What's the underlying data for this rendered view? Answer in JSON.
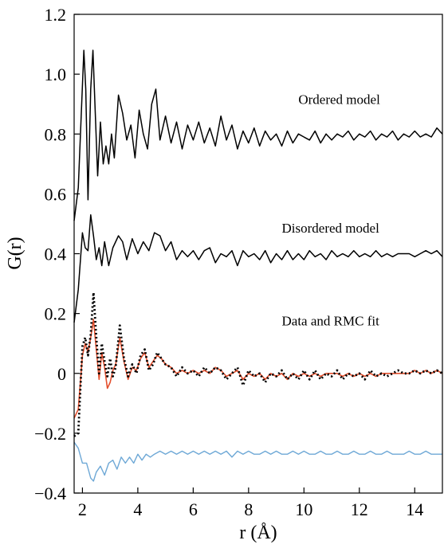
{
  "chart_data": {
    "type": "line",
    "xlabel": "r (Å)",
    "ylabel": "G(r)",
    "xlim": [
      1.7,
      15.0
    ],
    "ylim": [
      -0.4,
      1.2
    ],
    "xticks": [
      "2",
      "4",
      "6",
      "8",
      "10",
      "12",
      "14"
    ],
    "yticks": [
      "−0.4",
      "−0.2",
      "0",
      "0.2",
      "0.4",
      "0.6",
      "0.8",
      "1.0",
      "1.2"
    ],
    "grid": false,
    "legend": "none",
    "annotations": [
      {
        "text": "Ordered model",
        "x": 9.8,
        "y": 0.9
      },
      {
        "text": "Disordered model",
        "x": 9.2,
        "y": 0.47
      },
      {
        "text": "Data and RMC fit",
        "x": 9.2,
        "y": 0.16
      }
    ],
    "series": [
      {
        "color": "#000000",
        "style": "solid",
        "x": [
          1.7,
          1.85,
          1.95,
          2.05,
          2.12,
          2.2,
          2.3,
          2.38,
          2.45,
          2.55,
          2.65,
          2.75,
          2.85,
          2.95,
          3.05,
          3.15,
          3.3,
          3.45,
          3.6,
          3.75,
          3.9,
          4.05,
          4.2,
          4.35,
          4.5,
          4.65,
          4.8,
          5.0,
          5.2,
          5.4,
          5.6,
          5.8,
          6.0,
          6.2,
          6.4,
          6.6,
          6.8,
          7.0,
          7.2,
          7.4,
          7.6,
          7.8,
          8.0,
          8.2,
          8.4,
          8.6,
          8.8,
          9.0,
          9.2,
          9.4,
          9.6,
          9.8,
          10.0,
          10.2,
          10.4,
          10.6,
          10.8,
          11.0,
          11.2,
          11.4,
          11.6,
          11.8,
          12.0,
          12.2,
          12.4,
          12.6,
          12.8,
          13.0,
          13.2,
          13.4,
          13.6,
          13.8,
          14.0,
          14.2,
          14.4,
          14.6,
          14.8,
          15.0
        ],
        "values": [
          0.51,
          0.62,
          0.85,
          1.08,
          0.95,
          0.58,
          0.95,
          1.08,
          0.9,
          0.66,
          0.84,
          0.7,
          0.76,
          0.7,
          0.8,
          0.72,
          0.93,
          0.87,
          0.78,
          0.83,
          0.72,
          0.88,
          0.8,
          0.75,
          0.9,
          0.95,
          0.78,
          0.86,
          0.77,
          0.84,
          0.75,
          0.83,
          0.78,
          0.84,
          0.77,
          0.82,
          0.76,
          0.86,
          0.78,
          0.83,
          0.75,
          0.81,
          0.77,
          0.82,
          0.76,
          0.81,
          0.78,
          0.8,
          0.76,
          0.81,
          0.77,
          0.8,
          0.79,
          0.78,
          0.81,
          0.77,
          0.8,
          0.78,
          0.8,
          0.79,
          0.81,
          0.78,
          0.8,
          0.79,
          0.81,
          0.78,
          0.8,
          0.79,
          0.81,
          0.78,
          0.8,
          0.79,
          0.81,
          0.79,
          0.8,
          0.79,
          0.82,
          0.8
        ]
      },
      {
        "color": "#000000",
        "style": "solid",
        "x": [
          1.7,
          1.85,
          2.0,
          2.1,
          2.2,
          2.3,
          2.4,
          2.5,
          2.6,
          2.7,
          2.8,
          2.95,
          3.1,
          3.3,
          3.45,
          3.6,
          3.8,
          4.0,
          4.2,
          4.4,
          4.6,
          4.8,
          5.0,
          5.2,
          5.4,
          5.6,
          5.8,
          6.0,
          6.2,
          6.4,
          6.6,
          6.8,
          7.0,
          7.2,
          7.4,
          7.6,
          7.8,
          8.0,
          8.2,
          8.4,
          8.6,
          8.8,
          9.0,
          9.2,
          9.4,
          9.6,
          9.8,
          10.0,
          10.2,
          10.4,
          10.6,
          10.8,
          11.0,
          11.2,
          11.4,
          11.6,
          11.8,
          12.0,
          12.2,
          12.4,
          12.6,
          12.8,
          13.0,
          13.2,
          13.4,
          13.6,
          13.8,
          14.0,
          14.2,
          14.4,
          14.6,
          14.8,
          15.0
        ],
        "values": [
          0.17,
          0.28,
          0.47,
          0.42,
          0.41,
          0.53,
          0.46,
          0.38,
          0.42,
          0.36,
          0.44,
          0.36,
          0.42,
          0.46,
          0.44,
          0.38,
          0.45,
          0.4,
          0.44,
          0.41,
          0.47,
          0.46,
          0.41,
          0.44,
          0.38,
          0.41,
          0.39,
          0.41,
          0.38,
          0.41,
          0.42,
          0.37,
          0.4,
          0.39,
          0.41,
          0.36,
          0.41,
          0.39,
          0.4,
          0.38,
          0.41,
          0.37,
          0.4,
          0.38,
          0.41,
          0.38,
          0.4,
          0.38,
          0.41,
          0.39,
          0.4,
          0.38,
          0.41,
          0.39,
          0.4,
          0.39,
          0.41,
          0.39,
          0.4,
          0.39,
          0.41,
          0.39,
          0.4,
          0.39,
          0.4,
          0.4,
          0.4,
          0.39,
          0.4,
          0.41,
          0.4,
          0.41,
          0.39
        ]
      },
      {
        "color": "#000000",
        "style": "dotted",
        "x": [
          1.7,
          1.85,
          2.0,
          2.1,
          2.2,
          2.3,
          2.4,
          2.5,
          2.6,
          2.7,
          2.8,
          2.9,
          3.0,
          3.1,
          3.2,
          3.35,
          3.5,
          3.65,
          3.8,
          3.95,
          4.1,
          4.25,
          4.4,
          4.55,
          4.7,
          4.85,
          5.0,
          5.2,
          5.4,
          5.6,
          5.8,
          6.0,
          6.2,
          6.4,
          6.6,
          6.8,
          7.0,
          7.2,
          7.4,
          7.6,
          7.8,
          8.0,
          8.2,
          8.4,
          8.6,
          8.8,
          9.0,
          9.2,
          9.4,
          9.6,
          9.8,
          10.0,
          10.2,
          10.4,
          10.6,
          10.8,
          11.0,
          11.2,
          11.4,
          11.6,
          11.8,
          12.0,
          12.2,
          12.4,
          12.6,
          12.8,
          13.0,
          13.2,
          13.4,
          13.6,
          13.8,
          14.0,
          14.2,
          14.4,
          14.6,
          14.8,
          15.0
        ],
        "values": [
          -0.21,
          -0.2,
          0.09,
          0.12,
          0.06,
          0.13,
          0.27,
          0.12,
          0.0,
          0.1,
          0.04,
          -0.01,
          0.05,
          -0.01,
          0.02,
          0.16,
          0.05,
          -0.01,
          0.03,
          0.0,
          0.06,
          0.08,
          0.01,
          0.03,
          0.07,
          0.05,
          0.03,
          0.02,
          -0.01,
          0.02,
          0.0,
          0.01,
          -0.01,
          0.02,
          0.0,
          0.02,
          0.01,
          -0.02,
          0.0,
          0.02,
          -0.04,
          0.01,
          -0.01,
          0.0,
          -0.03,
          0.0,
          -0.01,
          0.01,
          -0.02,
          0.0,
          -0.02,
          0.01,
          -0.02,
          0.01,
          -0.02,
          0.0,
          -0.01,
          0.01,
          -0.02,
          0.0,
          -0.01,
          0.0,
          -0.02,
          0.01,
          -0.01,
          0.0,
          -0.01,
          0.0,
          0.01,
          0.0,
          0.0,
          0.01,
          0.0,
          0.01,
          0.0,
          0.01,
          0.0
        ]
      },
      {
        "color": "#e4502e",
        "style": "solid",
        "x": [
          1.7,
          1.85,
          2.0,
          2.1,
          2.2,
          2.3,
          2.4,
          2.5,
          2.6,
          2.7,
          2.8,
          2.9,
          3.0,
          3.1,
          3.2,
          3.35,
          3.5,
          3.65,
          3.8,
          3.95,
          4.1,
          4.25,
          4.4,
          4.55,
          4.7,
          4.85,
          5.0,
          5.2,
          5.4,
          5.6,
          5.8,
          6.0,
          6.2,
          6.4,
          6.6,
          6.8,
          7.0,
          7.2,
          7.4,
          7.6,
          7.8,
          8.0,
          8.2,
          8.4,
          8.6,
          8.8,
          9.0,
          9.2,
          9.4,
          9.6,
          9.8,
          10.0,
          10.2,
          10.4,
          10.6,
          10.8,
          11.0,
          11.2,
          11.4,
          11.6,
          11.8,
          12.0,
          12.2,
          12.4,
          12.6,
          12.8,
          13.0,
          13.2,
          13.4,
          13.6,
          13.8,
          14.0,
          14.2,
          14.4,
          14.6,
          14.8,
          15.0
        ],
        "values": [
          -0.15,
          -0.12,
          0.06,
          0.1,
          0.07,
          0.12,
          0.18,
          0.08,
          -0.02,
          0.07,
          0.02,
          -0.05,
          -0.03,
          0.01,
          0.03,
          0.12,
          0.04,
          -0.02,
          0.02,
          0.01,
          0.05,
          0.07,
          0.02,
          0.04,
          0.06,
          0.05,
          0.03,
          0.02,
          0.0,
          0.01,
          0.0,
          0.01,
          0.0,
          0.01,
          0.0,
          0.02,
          0.01,
          -0.01,
          0.0,
          0.01,
          -0.02,
          0.0,
          -0.01,
          0.0,
          -0.02,
          0.0,
          -0.01,
          0.0,
          -0.02,
          0.0,
          -0.01,
          0.0,
          -0.01,
          0.0,
          -0.01,
          0.0,
          0.0,
          0.0,
          -0.01,
          0.0,
          -0.01,
          0.0,
          -0.01,
          0.0,
          -0.01,
          0.0,
          0.0,
          0.0,
          0.0,
          0.0,
          0.0,
          0.01,
          0.0,
          0.01,
          0.0,
          0.01,
          0.0
        ]
      },
      {
        "color": "#6ea8d6",
        "style": "solid",
        "x": [
          1.7,
          1.85,
          2.0,
          2.15,
          2.3,
          2.4,
          2.5,
          2.65,
          2.8,
          2.95,
          3.1,
          3.25,
          3.4,
          3.55,
          3.7,
          3.85,
          4.0,
          4.15,
          4.3,
          4.45,
          4.6,
          4.8,
          5.0,
          5.2,
          5.4,
          5.6,
          5.8,
          6.0,
          6.2,
          6.4,
          6.6,
          6.8,
          7.0,
          7.2,
          7.4,
          7.6,
          7.8,
          8.0,
          8.2,
          8.4,
          8.6,
          8.8,
          9.0,
          9.2,
          9.4,
          9.6,
          9.8,
          10.0,
          10.2,
          10.4,
          10.6,
          10.8,
          11.0,
          11.2,
          11.4,
          11.6,
          11.8,
          12.0,
          12.2,
          12.4,
          12.6,
          12.8,
          13.0,
          13.2,
          13.4,
          13.6,
          13.8,
          14.0,
          14.2,
          14.4,
          14.6,
          14.8,
          15.0
        ],
        "values": [
          -0.23,
          -0.25,
          -0.3,
          -0.3,
          -0.35,
          -0.36,
          -0.33,
          -0.31,
          -0.34,
          -0.3,
          -0.29,
          -0.32,
          -0.28,
          -0.3,
          -0.28,
          -0.3,
          -0.27,
          -0.29,
          -0.27,
          -0.28,
          -0.27,
          -0.26,
          -0.27,
          -0.26,
          -0.27,
          -0.26,
          -0.27,
          -0.26,
          -0.27,
          -0.26,
          -0.27,
          -0.26,
          -0.27,
          -0.26,
          -0.28,
          -0.26,
          -0.27,
          -0.26,
          -0.27,
          -0.27,
          -0.26,
          -0.27,
          -0.26,
          -0.27,
          -0.27,
          -0.26,
          -0.27,
          -0.26,
          -0.27,
          -0.27,
          -0.26,
          -0.27,
          -0.27,
          -0.26,
          -0.27,
          -0.27,
          -0.26,
          -0.27,
          -0.27,
          -0.26,
          -0.27,
          -0.27,
          -0.26,
          -0.27,
          -0.27,
          -0.27,
          -0.26,
          -0.27,
          -0.27,
          -0.26,
          -0.27,
          -0.27,
          -0.27
        ]
      }
    ]
  }
}
